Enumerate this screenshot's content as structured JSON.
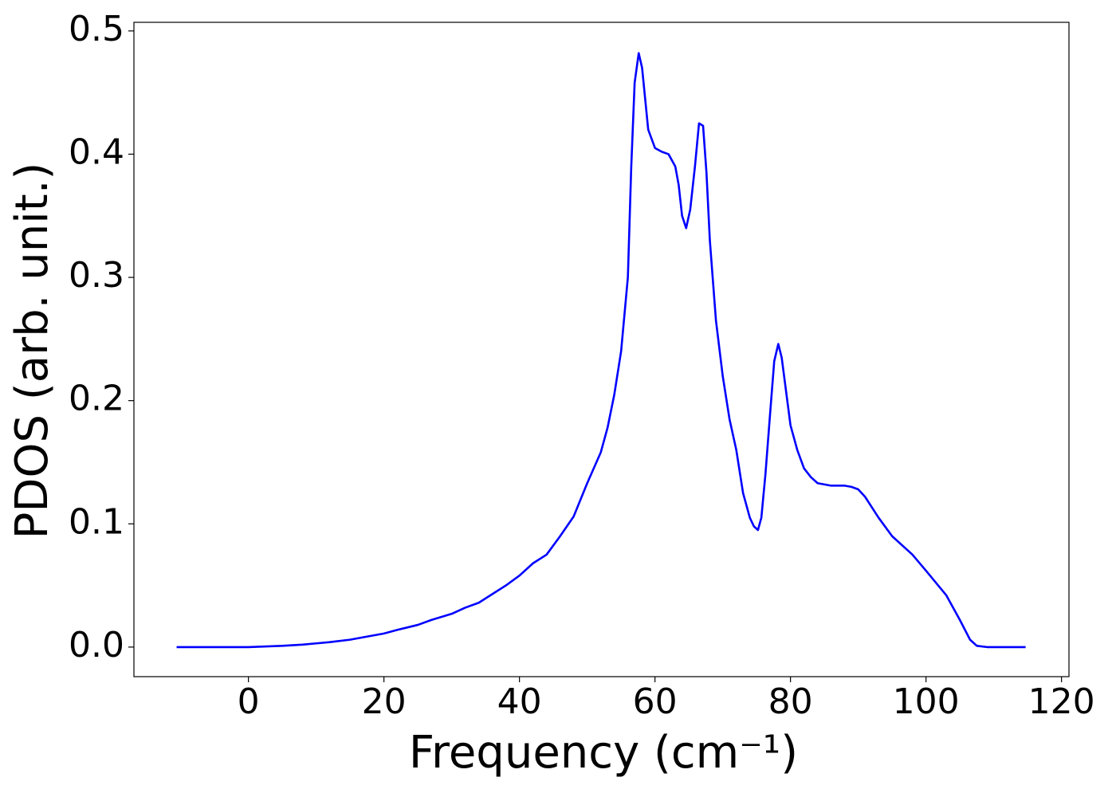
{
  "chart_data": {
    "type": "line",
    "x_label": "Frequency (cm⁻¹)",
    "y_label": "PDOS (arb. unit.)",
    "x": [
      -10.6,
      -5,
      0,
      5,
      8,
      10,
      12,
      15,
      17,
      20,
      22,
      25,
      27,
      30,
      32,
      34,
      36,
      38,
      40,
      42,
      44,
      46,
      48,
      50,
      52,
      53,
      54,
      55,
      56,
      56.5,
      57,
      57.6,
      58.1,
      59,
      60,
      61,
      62,
      63,
      63.5,
      64,
      64.6,
      65.2,
      65.9,
      66.5,
      67.1,
      67.6,
      68.1,
      69,
      70,
      71,
      72,
      73,
      74,
      74.6,
      75.2,
      75.7,
      76.3,
      77,
      77.6,
      78.2,
      78.7,
      80,
      81,
      82,
      83,
      84,
      86,
      88,
      89,
      90,
      91,
      93,
      95,
      98,
      100,
      103,
      105,
      106.5,
      107.5,
      109,
      114.7
    ],
    "series": [
      {
        "color": "#0000ff",
        "values": [
          0,
          0,
          0,
          0.001,
          0.002,
          0.003,
          0.004,
          0.006,
          0.008,
          0.011,
          0.014,
          0.018,
          0.022,
          0.027,
          0.032,
          0.036,
          0.043,
          0.05,
          0.058,
          0.068,
          0.075,
          0.09,
          0.106,
          0.133,
          0.158,
          0.178,
          0.205,
          0.24,
          0.3,
          0.39,
          0.458,
          0.482,
          0.47,
          0.42,
          0.405,
          0.402,
          0.4,
          0.39,
          0.375,
          0.35,
          0.34,
          0.355,
          0.39,
          0.425,
          0.423,
          0.385,
          0.33,
          0.265,
          0.22,
          0.185,
          0.16,
          0.125,
          0.105,
          0.098,
          0.095,
          0.105,
          0.14,
          0.19,
          0.232,
          0.246,
          0.235,
          0.18,
          0.16,
          0.145,
          0.138,
          0.133,
          0.131,
          0.131,
          0.13,
          0.128,
          0.122,
          0.105,
          0.09,
          0.075,
          0.062,
          0.042,
          0.022,
          0.006,
          0.001,
          0,
          0
        ]
      }
    ],
    "xlim": [
      -16.9,
      121.1
    ],
    "ylim": [
      -0.024,
      0.507
    ],
    "xticks": [
      0,
      20,
      40,
      60,
      80,
      100,
      120
    ],
    "yticks": [
      {
        "value": 0,
        "label": "0.0"
      },
      0.1,
      0.2,
      0.3,
      0.4,
      0.5
    ]
  }
}
